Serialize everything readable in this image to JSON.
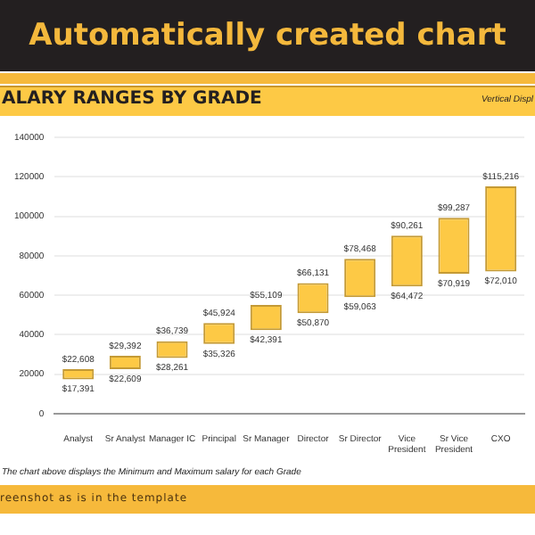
{
  "chart_data": {
    "type": "bar",
    "title": "ALARY RANGES BY GRADE",
    "categories": [
      "Analyst",
      "Sr Analyst",
      "Manager IC",
      "Principal",
      "Sr Manager",
      "Director",
      "Sr Director",
      "Vice President",
      "Sr Vice President",
      "CXO"
    ],
    "base": [
      17391,
      22609,
      28261,
      35326,
      42391,
      50870,
      59063,
      64472,
      70919,
      72010
    ],
    "values": [
      5217,
      6783,
      8478,
      10598,
      12718,
      15261,
      19405,
      25789,
      28368,
      43206
    ],
    "color": "#fdc945",
    "ylim": [
      0,
      140000
    ],
    "yticks": [
      0,
      20000,
      40000,
      60000,
      80000,
      100000,
      120000,
      140000
    ],
    "grid": "y",
    "annotations": [
      "Automatically created chart",
      "Vertical Displ",
      "The chart above displays the Minimum and Maximum salary for each Grade",
      "reenshot as is in the template",
      {
        "text": "$22,608",
        "x": "Analyst",
        "y": 22608
      },
      {
        "text": "$17,391",
        "x": "Analyst",
        "y": 17391
      },
      {
        "text": "$29,392",
        "x": "Sr Analyst",
        "y": 29392
      },
      {
        "text": "$22,609",
        "x": "Sr Analyst",
        "y": 22609
      },
      {
        "text": "$36,739",
        "x": "Manager IC",
        "y": 36739
      },
      {
        "text": "$28,261",
        "x": "Manager IC",
        "y": 28261
      },
      {
        "text": "$45,924",
        "x": "Principal",
        "y": 45924
      },
      {
        "text": "$35,326",
        "x": "Principal",
        "y": 35326
      },
      {
        "text": "$55,109",
        "x": "Sr Manager",
        "y": 55109
      },
      {
        "text": "$42,391",
        "x": "Sr Manager",
        "y": 42391
      },
      {
        "text": "$66,131",
        "x": "Director",
        "y": 66131
      },
      {
        "text": "$50,870",
        "x": "Director",
        "y": 50870
      },
      {
        "text": "$78,468",
        "x": "Sr Director",
        "y": 78468
      },
      {
        "text": "$59,063",
        "x": "Sr Director",
        "y": 59063
      },
      {
        "text": "$90,261",
        "x": "Vice President",
        "y": 90261
      },
      {
        "text": "$64,472",
        "x": "Vice President",
        "y": 64472
      },
      {
        "text": "$99,287",
        "x": "Sr Vice President",
        "y": 99287
      },
      {
        "text": "$70,919",
        "x": "Sr Vice President",
        "y": 70919
      },
      {
        "text": "$115,216",
        "x": "CXO",
        "y": 115216
      },
      {
        "text": "$72,010",
        "x": "CXO",
        "y": 72010
      }
    ]
  }
}
